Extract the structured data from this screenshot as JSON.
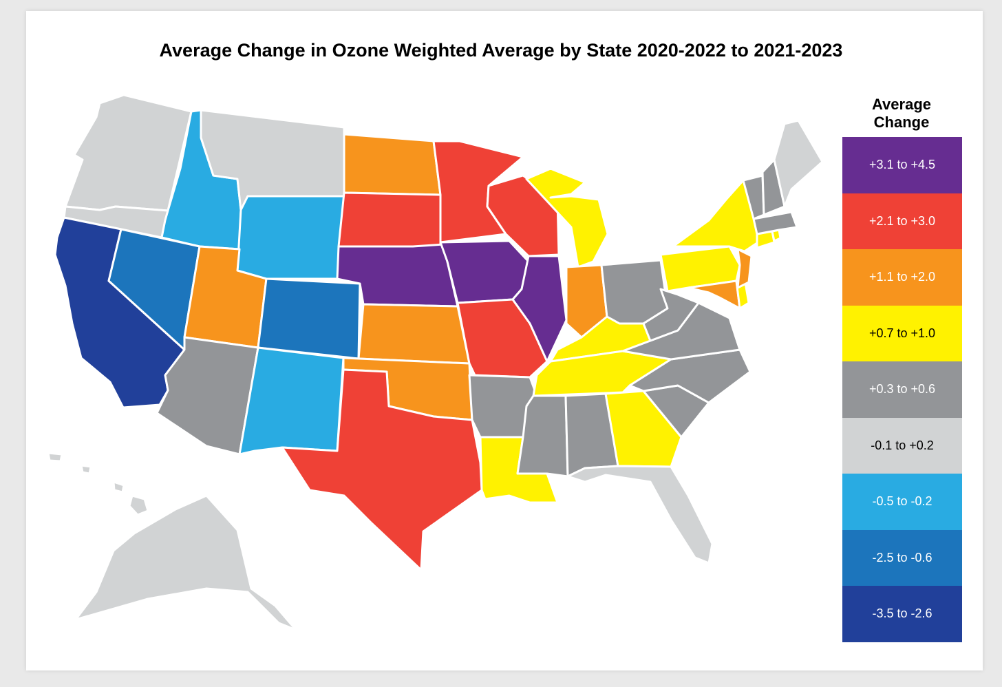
{
  "title": "Average Change in Ozone Weighted Average by State 2020-2022 to 2021-2023",
  "legend": {
    "title_line1": "Average",
    "title_line2": "Change",
    "items": [
      {
        "label": "+3.1 to +4.5",
        "color": "#662d91",
        "text_color": "#ffffff"
      },
      {
        "label": "+2.1 to +3.0",
        "color": "#ef4136",
        "text_color": "#ffffff"
      },
      {
        "label": "+1.1 to +2.0",
        "color": "#f7941d",
        "text_color": "#ffffff"
      },
      {
        "label": "+0.7 to +1.0",
        "color": "#fff200",
        "text_color": "#000000"
      },
      {
        "label": "+0.3 to +0.6",
        "color": "#939598",
        "text_color": "#ffffff"
      },
      {
        "label": "-0.1 to +0.2",
        "color": "#d1d3d4",
        "text_color": "#000000"
      },
      {
        "label": "-0.5 to -0.2",
        "color": "#29abe2",
        "text_color": "#ffffff"
      },
      {
        "label": "-2.5 to -0.6",
        "color": "#1c75bc",
        "text_color": "#ffffff"
      },
      {
        "label": "-3.5 to -2.6",
        "color": "#21409a",
        "text_color": "#ffffff"
      }
    ]
  },
  "states": {
    "WA": "-0.1 to +0.2",
    "OR": "-0.1 to +0.2",
    "ID": "-0.5 to -0.2",
    "MT": "-0.1 to +0.2",
    "WY": "-0.5 to -0.2",
    "CA": "-3.5 to -2.6",
    "NV": "-2.5 to -0.6",
    "UT": "+1.1 to +2.0",
    "CO": "-2.5 to -0.6",
    "AZ": "+0.3 to +0.6",
    "NM": "-0.5 to -0.2",
    "ND": "+1.1 to +2.0",
    "SD": "+2.1 to +3.0",
    "NE": "+3.1 to +4.5",
    "KS": "+1.1 to +2.0",
    "OK": "+1.1 to +2.0",
    "TX": "+2.1 to +3.0",
    "MN": "+2.1 to +3.0",
    "IA": "+3.1 to +4.5",
    "MO": "+2.1 to +3.0",
    "AR": "+0.3 to +0.6",
    "LA": "+0.7 to +1.0",
    "WI": "+2.1 to +3.0",
    "IL": "+3.1 to +4.5",
    "MI": "+0.7 to +1.0",
    "IN": "+1.1 to +2.0",
    "OH": "+0.3 to +0.6",
    "KY": "+0.7 to +1.0",
    "TN": "+0.7 to +1.0",
    "MS": "+0.3 to +0.6",
    "AL": "+0.3 to +0.6",
    "GA": "+0.7 to +1.0",
    "FL": "-0.1 to +0.2",
    "SC": "+0.3 to +0.6",
    "NC": "+0.3 to +0.6",
    "VA": "+0.3 to +0.6",
    "WV": "+0.3 to +0.6",
    "MD": "+1.1 to +2.0",
    "DE": "+0.7 to +1.0",
    "NJ": "+1.1 to +2.0",
    "PA": "+0.7 to +1.0",
    "NY": "+0.7 to +1.0",
    "CT": "+0.7 to +1.0",
    "RI": "+0.7 to +1.0",
    "MA": "+0.3 to +0.6",
    "VT": "+0.3 to +0.6",
    "NH": "+0.3 to +0.6",
    "ME": "-0.1 to +0.2",
    "AK": "-0.1 to +0.2",
    "HI": "-0.1 to +0.2"
  }
}
